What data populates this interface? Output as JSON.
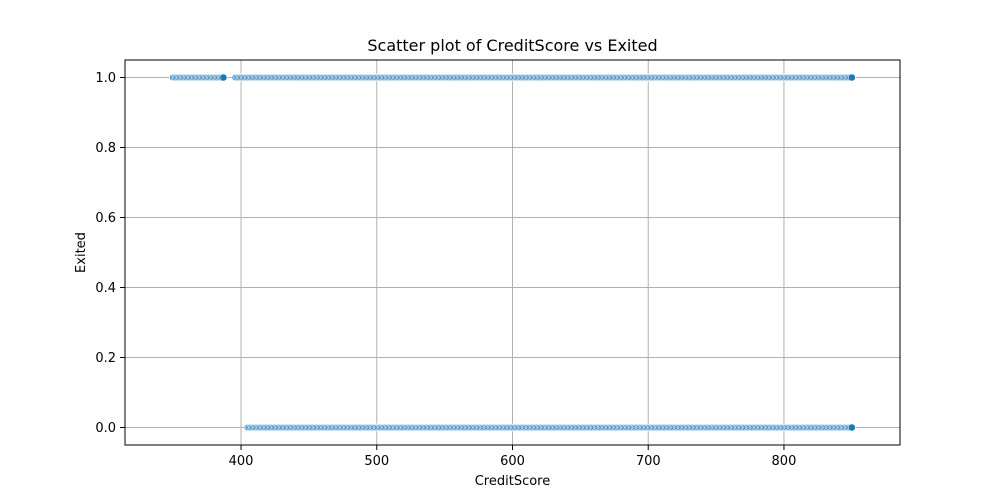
{
  "chart_data": {
    "type": "scatter",
    "title": "Scatter plot of CreditScore vs Exited",
    "xlabel": "CreditScore",
    "ylabel": "Exited",
    "xlim": [
      314.5,
      885.5
    ],
    "ylim": [
      -0.05,
      1.05
    ],
    "x_ticks": [
      400,
      500,
      600,
      700,
      800
    ],
    "y_ticks": [
      0.0,
      0.2,
      0.4,
      0.6,
      0.8,
      1.0
    ],
    "x_tick_labels": [
      "400",
      "500",
      "600",
      "700",
      "800"
    ],
    "y_tick_labels": [
      "0.0",
      "0.2",
      "0.4",
      "0.6",
      "0.8",
      "1.0"
    ],
    "grid": true,
    "marker_color": "#1f77b4",
    "marker_edge_color": "#ffffff",
    "series": [
      {
        "y": 1,
        "x_min": 350,
        "x_max": 850,
        "gaps": [
          [
            387,
            396
          ]
        ]
      },
      {
        "y": 0,
        "x_min": 405,
        "x_max": 850,
        "gaps": []
      }
    ]
  }
}
